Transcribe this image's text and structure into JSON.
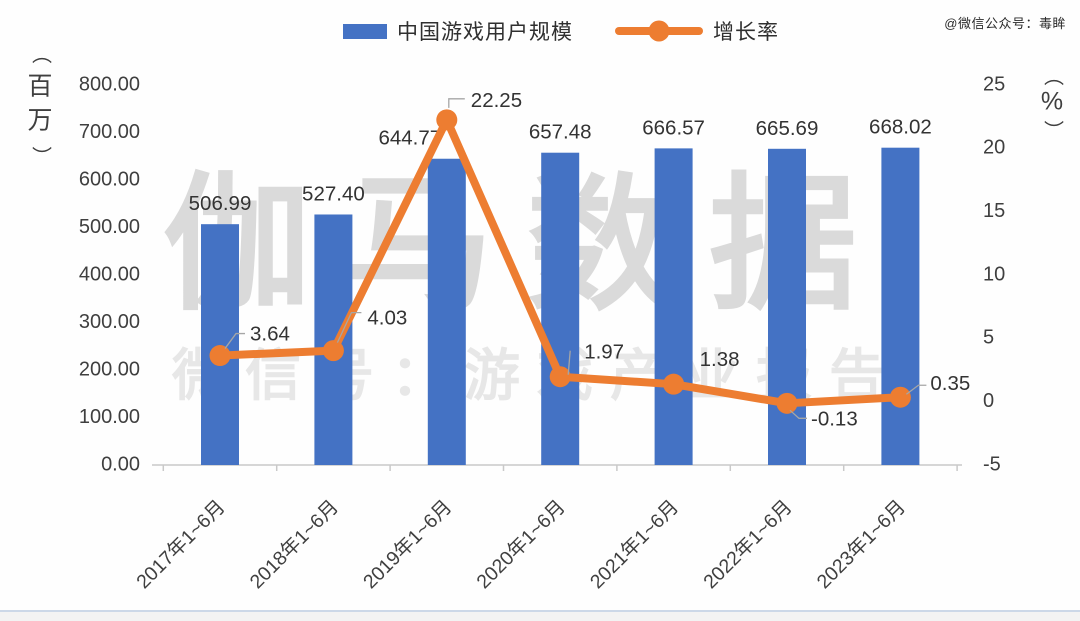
{
  "source_credit": "@微信公众号：毒眸",
  "legend": {
    "bar_label": "中国游戏用户规模",
    "line_label": "增长率"
  },
  "watermark": {
    "title": "伽马数据",
    "subtitle": "微信号：游戏产业报告"
  },
  "colors": {
    "bar": "#4472c4",
    "line": "#ed7d31",
    "value_text": "#333333",
    "axis_text": "#3f3f3f",
    "leader": "#a6a6a6",
    "axis_line": "#c9c9c9",
    "watermark": "#dadada",
    "watermark_sub": "#e7e7e7",
    "bottom_line": "#ccd8e8",
    "source_text": "#2b2b2b"
  },
  "chart_data": {
    "type": "bar+line",
    "categories": [
      "2017年1~6月",
      "2018年1~6月",
      "2019年1~6月",
      "2020年1~6月",
      "2021年1~6月",
      "2022年1~6月",
      "2023年1~6月"
    ],
    "series": [
      {
        "name": "中国游戏用户规模",
        "type": "bar",
        "axis": "left",
        "unit": "百万",
        "values": [
          506.99,
          527.4,
          644.77,
          657.48,
          666.57,
          665.69,
          668.02
        ],
        "labels": [
          "506.99",
          "527.40",
          "644.77",
          "657.48",
          "666.57",
          "665.69",
          "668.02"
        ]
      },
      {
        "name": "增长率",
        "type": "line",
        "axis": "right",
        "unit": "%",
        "values": [
          3.64,
          4.03,
          22.25,
          1.97,
          1.38,
          -0.13,
          0.35
        ],
        "labels": [
          "3.64",
          "4.03",
          "22.25",
          "1.97",
          "1.38",
          "-0.13",
          "0.35"
        ]
      }
    ],
    "left_axis": {
      "unit": "（百万）",
      "min": 0,
      "max": 800,
      "step": 100,
      "ticks": [
        "800.00",
        "700.00",
        "600.00",
        "500.00",
        "400.00",
        "300.00",
        "200.00",
        "100.00",
        "0.00"
      ]
    },
    "right_axis": {
      "unit": "（%）",
      "min": -5,
      "max": 25,
      "step": 5,
      "ticks": [
        "25",
        "20",
        "15",
        "10",
        "5",
        "0",
        "-5"
      ]
    },
    "grid": false,
    "legend_position": "top-center"
  }
}
